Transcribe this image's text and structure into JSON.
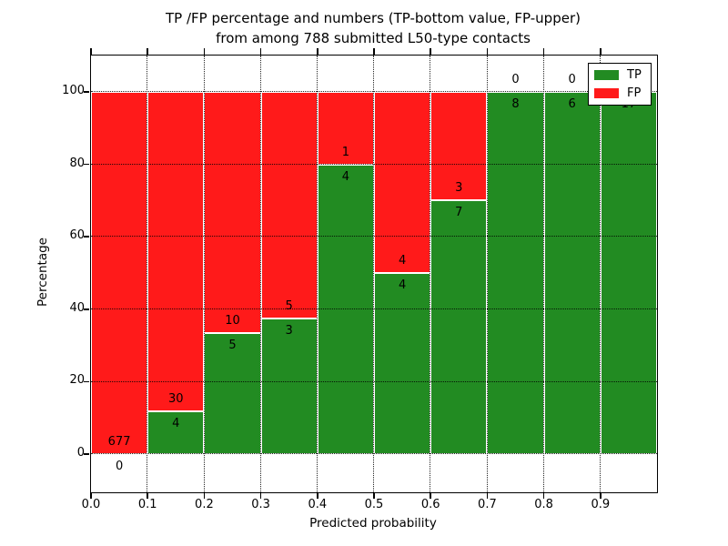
{
  "chart_data": {
    "type": "bar",
    "stacked": true,
    "normalized_to_percent": true,
    "title_line1": "TP /FP percentage and numbers (TP-bottom value, FP-upper)",
    "title_line2": "from among 788 submitted L50-type contacts",
    "title": "TP /FP percentage and numbers (TP-bottom value, FP-upper) from among 788 submitted L50-type contacts",
    "total_contacts": 788,
    "xlabel": "Predicted probability",
    "ylabel": "Percentage",
    "categories": [
      "0.0-0.1",
      "0.1-0.2",
      "0.2-0.3",
      "0.3-0.4",
      "0.4-0.5",
      "0.5-0.6",
      "0.6-0.7",
      "0.7-0.8",
      "0.8-0.9",
      "0.9-1.0"
    ],
    "x_ticks": [
      "0.0",
      "0.1",
      "0.2",
      "0.3",
      "0.4",
      "0.5",
      "0.6",
      "0.7",
      "0.8",
      "0.9"
    ],
    "y_ticks": [
      0,
      20,
      40,
      60,
      80,
      100
    ],
    "xlim": [
      0.0,
      1.0
    ],
    "ylim_percent": [
      0,
      100
    ],
    "grid": true,
    "series": [
      {
        "name": "TP",
        "color": "#228b22",
        "values": [
          0,
          4,
          5,
          3,
          4,
          4,
          7,
          8,
          6,
          17
        ]
      },
      {
        "name": "FP",
        "color": "#ff1a1a",
        "values": [
          677,
          30,
          10,
          5,
          1,
          4,
          3,
          0,
          0,
          0
        ]
      }
    ],
    "tp_percent": [
      0,
      11.8,
      33.3,
      37.5,
      80,
      50,
      70,
      100,
      100,
      100
    ],
    "legend": {
      "position": "upper right",
      "entries": [
        {
          "label": "TP",
          "color": "#228b22"
        },
        {
          "label": "FP",
          "color": "#ff1a1a"
        }
      ]
    }
  }
}
